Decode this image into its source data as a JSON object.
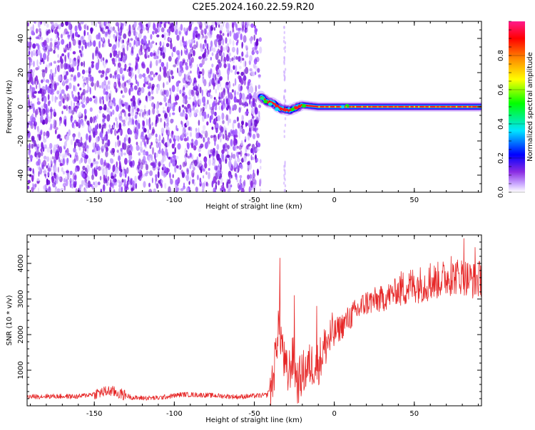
{
  "title": "C2E5.2024.160.22.59.R20",
  "chart_data": [
    {
      "type": "heatmap",
      "xlabel": "Height of straight line (km)",
      "ylabel": "Frequency (Hz)",
      "xlim": [
        -192,
        92
      ],
      "ylim": [
        -50,
        50
      ],
      "xticks": [
        -150,
        -100,
        -50,
        0,
        50
      ],
      "yticks": [
        -40,
        -20,
        0,
        20,
        40
      ],
      "colorbar": {
        "label": "Normalized spectral amplitude",
        "range": [
          0,
          1
        ],
        "ticks": [
          "0.0",
          "0.2",
          "0.4",
          "0.6",
          "0.8"
        ],
        "colors": [
          "#ffffff",
          "#c9a6ff",
          "#8a2be2",
          "#0000ff",
          "#00e5ff",
          "#00ff00",
          "#ffff00",
          "#ff8c00",
          "#ff0000",
          "#ff1a8c"
        ]
      },
      "features": {
        "noise_region_x": [
          -192,
          -46
        ],
        "faint_trace_x": -31,
        "signal_band": {
          "x": [
            -46,
            92
          ],
          "frequency_hz": 0
        },
        "signal_onset_offset_hz": [
          [
            -46,
            6
          ],
          [
            -42,
            3
          ],
          [
            -38,
            2
          ],
          [
            -34,
            -1
          ],
          [
            -28,
            -2
          ],
          [
            -20,
            1
          ],
          [
            -10,
            0
          ],
          [
            0,
            0
          ],
          [
            92,
            0
          ]
        ]
      }
    },
    {
      "type": "line",
      "xlabel": "Height of straight line (km)",
      "ylabel": "SNR (10 * v/v)",
      "xlim": [
        -192,
        92
      ],
      "ylim": [
        0,
        4800
      ],
      "xticks": [
        -150,
        -100,
        -50,
        0,
        50
      ],
      "yticks": [
        1000,
        2000,
        3000,
        4000
      ],
      "color": "#e62626",
      "envelope": {
        "x": [
          -192,
          -180,
          -160,
          -140,
          -125,
          -110,
          -95,
          -80,
          -60,
          -42,
          -38,
          -35,
          -33,
          -31,
          -29,
          -26,
          -23,
          -20,
          -15,
          -10,
          -5,
          0,
          5,
          10,
          20,
          30,
          40,
          50,
          60,
          70,
          80,
          88,
          92
        ],
        "y": [
          250,
          270,
          260,
          420,
          220,
          220,
          320,
          300,
          250,
          300,
          800,
          2300,
          1900,
          1100,
          850,
          1350,
          650,
          900,
          1150,
          1200,
          1750,
          2050,
          2250,
          2500,
          2900,
          3000,
          3250,
          3400,
          3450,
          3600,
          3650,
          3500,
          3600
        ]
      },
      "peaks": [
        [
          -34,
          4150
        ],
        [
          -25,
          3100
        ],
        [
          -11,
          2800
        ],
        [
          60,
          4000
        ],
        [
          73,
          4200
        ],
        [
          81,
          4700
        ],
        [
          88,
          4450
        ]
      ]
    }
  ]
}
